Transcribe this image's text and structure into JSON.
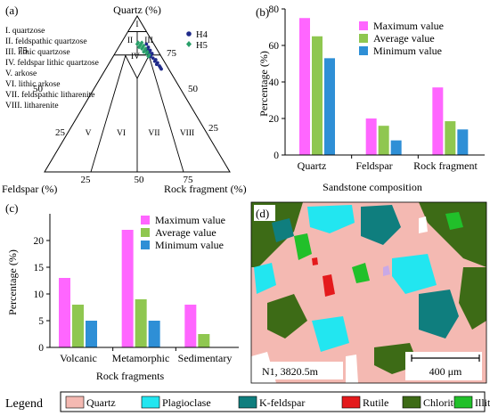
{
  "legend": {
    "title": "Legend",
    "items": [
      {
        "label": "Quartz",
        "color": "#f4b9b2"
      },
      {
        "label": "Plagioclase",
        "color": "#22e6f0"
      },
      {
        "label": "K-feldspar",
        "color": "#0f7e7e"
      },
      {
        "label": "Rutile",
        "color": "#e41a1c"
      },
      {
        "label": "Chlorite",
        "color": "#3d6b16"
      },
      {
        "label": "Illite",
        "color": "#21c02a"
      }
    ]
  },
  "panels": {
    "a": {
      "label": "(a)"
    },
    "b": {
      "label": "(b)"
    },
    "c": {
      "label": "(c)"
    },
    "d": {
      "label": "(d)"
    }
  },
  "ternary": {
    "apex_top": "Quartz (%)",
    "apex_left": "Feldspar (%)",
    "apex_right": "Rock fragment (%)",
    "fields": [
      "I. quartzose",
      "II. feldspathic quartzose",
      "III. lithic quartzose",
      "IV. feldspar lithic quartzose",
      "V. arkose",
      "VI. lithic arkose",
      "VII. feldspathic litharenite",
      "VIII. litharenite"
    ],
    "field_numerals": [
      "I",
      "II",
      "III",
      "IV",
      "V",
      "VI",
      "VII",
      "VIII"
    ],
    "scale_labels": {
      "q_left": [
        "75",
        "50",
        "25"
      ],
      "q_right": [
        "75",
        "50",
        "25"
      ],
      "bottom": [
        "25",
        "50",
        "75"
      ]
    },
    "series": [
      {
        "name": "H4",
        "color": "#1f2a8a",
        "marker": "circle"
      },
      {
        "name": "H5",
        "color": "#2aa06a",
        "marker": "diamond"
      }
    ]
  },
  "micrograph": {
    "caption": "N1, 3820.5m",
    "scale_label": "400 μm"
  },
  "chart_data": [
    {
      "type": "bar",
      "panel": "b",
      "categories": [
        "Quartz",
        "Feldspar",
        "Rock fragment"
      ],
      "series": [
        {
          "name": "Maximum value",
          "color": "#ff66ff",
          "values": [
            75,
            20,
            37
          ]
        },
        {
          "name": "Average value",
          "color": "#8fc750",
          "values": [
            65,
            16,
            18.5
          ]
        },
        {
          "name": "Minimum value",
          "color": "#2e8fd6",
          "values": [
            53,
            8,
            14
          ]
        }
      ],
      "xlabel": "Sandstone composition",
      "ylabel": "Percentage (%)",
      "ylim": [
        0,
        80
      ],
      "yticks": [
        "0",
        "20",
        "40",
        "60",
        "80"
      ],
      "grid": false,
      "legend_position": "top-right"
    },
    {
      "type": "bar",
      "panel": "c",
      "categories": [
        "Volcanic",
        "Metamorphic",
        "Sedimentary"
      ],
      "series": [
        {
          "name": "Maximum value",
          "color": "#ff66ff",
          "values": [
            13,
            22,
            8
          ]
        },
        {
          "name": "Average value",
          "color": "#8fc750",
          "values": [
            8,
            9,
            2.5
          ]
        },
        {
          "name": "Minimum value",
          "color": "#2e8fd6",
          "values": [
            5,
            5,
            null
          ]
        }
      ],
      "xlabel": "Rock fragments",
      "ylabel": "Percentage (%)",
      "ylim": [
        0,
        25
      ],
      "yticks": [
        "0",
        "5",
        "10",
        "15",
        "20"
      ],
      "grid": false,
      "legend_position": "top-right"
    },
    {
      "type": "scatter",
      "panel": "a",
      "note_axes": [
        "Quartz",
        "Feldspar",
        "Rock fragment"
      ],
      "series": [
        {
          "name": "H4",
          "points": [
            [
              82,
              4,
              14
            ],
            [
              80,
              4,
              16
            ],
            [
              79,
              5,
              16
            ],
            [
              78,
              4,
              18
            ],
            [
              78,
              6,
              16
            ],
            [
              77,
              5,
              18
            ],
            [
              76,
              4,
              20
            ],
            [
              76,
              6,
              18
            ],
            [
              75,
              5,
              20
            ],
            [
              74,
              6,
              20
            ],
            [
              73,
              5,
              22
            ],
            [
              72,
              4,
              24
            ],
            [
              71,
              5,
              24
            ],
            [
              70,
              4,
              26
            ],
            [
              69,
              5,
              26
            ],
            [
              68,
              4,
              28
            ],
            [
              67,
              4,
              29
            ],
            [
              66,
              4,
              30
            ]
          ]
        },
        {
          "name": "H5",
          "points": [
            [
              83,
              6,
              11
            ],
            [
              83,
              8,
              9
            ],
            [
              82,
              7,
              11
            ],
            [
              82,
              9,
              9
            ],
            [
              81,
              8,
              11
            ],
            [
              81,
              6,
              13
            ],
            [
              80,
              7,
              13
            ],
            [
              80,
              9,
              11
            ],
            [
              79,
              8,
              13
            ],
            [
              79,
              6,
              15
            ],
            [
              78,
              7,
              15
            ],
            [
              77,
              8,
              15
            ],
            [
              77,
              6,
              17
            ],
            [
              76,
              7,
              17
            ],
            [
              75,
              6,
              19
            ],
            [
              74,
              7,
              19
            ]
          ]
        }
      ]
    }
  ]
}
